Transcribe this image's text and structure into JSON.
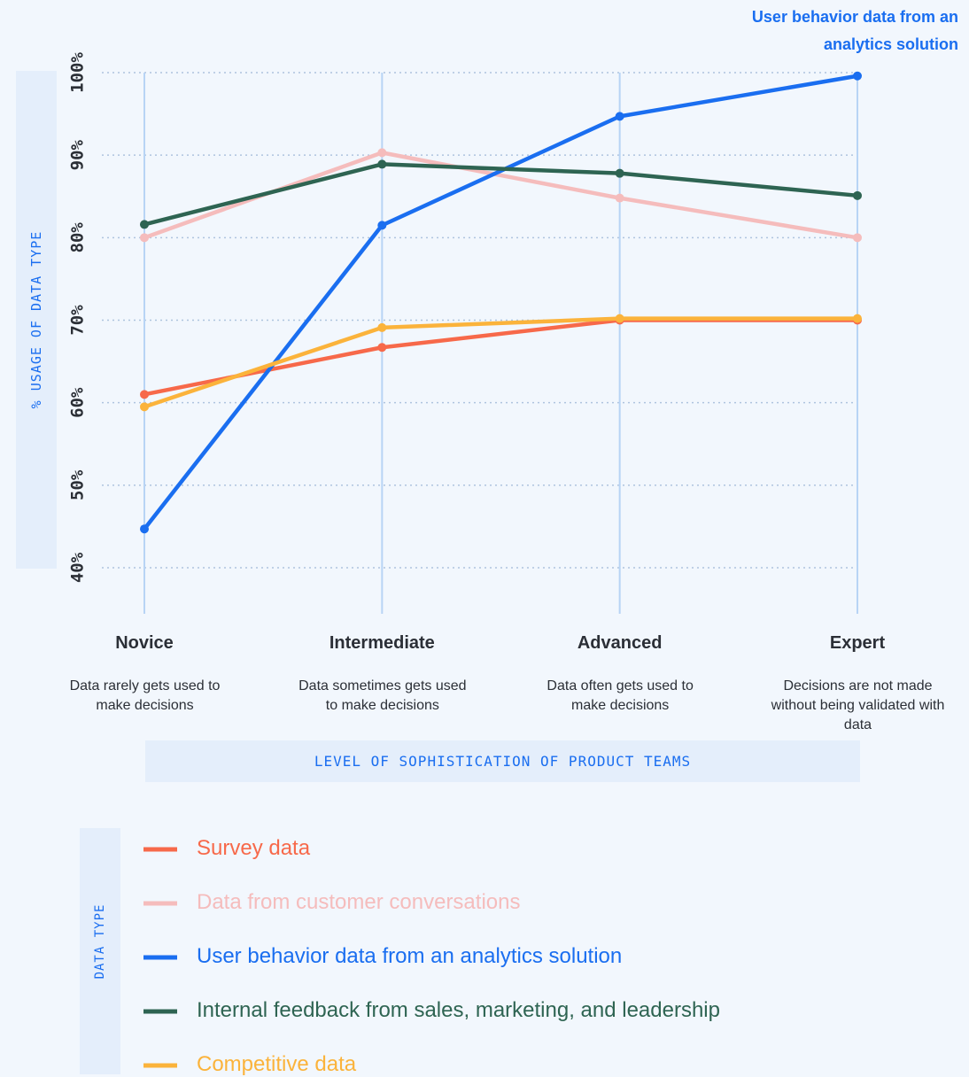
{
  "chart_data": {
    "type": "line",
    "y_label": "% USAGE OF DATA TYPE",
    "x_label": "LEVEL OF SOPHISTICATION OF PRODUCT TEAMS",
    "legend_title": "DATA TYPE",
    "annotation": "User behavior data from an analytics solution",
    "categories": [
      "Novice",
      "Intermediate",
      "Advanced",
      "Expert"
    ],
    "category_descriptions": [
      "Data rarely gets used to make decisions",
      "Data sometimes gets used to make decisions",
      "Data often gets used to make decisions",
      "Decisions are not made without being validated with data"
    ],
    "ylim": [
      40,
      100
    ],
    "yticks": [
      {
        "value": 40,
        "label": "40%"
      },
      {
        "value": 50,
        "label": "50%"
      },
      {
        "value": 60,
        "label": "60%"
      },
      {
        "value": 70,
        "label": "70%"
      },
      {
        "value": 80,
        "label": "80%"
      },
      {
        "value": 90,
        "label": "90%"
      },
      {
        "value": 100,
        "label": "100%"
      }
    ],
    "grid": true,
    "series": [
      {
        "name": "Survey data",
        "color": "#f7694a",
        "values": [
          61,
          66.7,
          70,
          70
        ]
      },
      {
        "name": "Data from customer conversations",
        "color": "#f5bcbc",
        "values": [
          80,
          90.3,
          84.8,
          80
        ]
      },
      {
        "name": "User behavior data from an analytics solution",
        "color": "#1a6ef0",
        "values": [
          44.7,
          81.5,
          94.7,
          99.6
        ]
      },
      {
        "name": "Internal feedback from sales, marketing, and leadership",
        "color": "#2e6452",
        "values": [
          81.6,
          88.9,
          87.8,
          85.1
        ]
      },
      {
        "name": "Competitive data",
        "color": "#fbb33b",
        "values": [
          59.5,
          69.1,
          70.2,
          70.2
        ]
      }
    ]
  }
}
